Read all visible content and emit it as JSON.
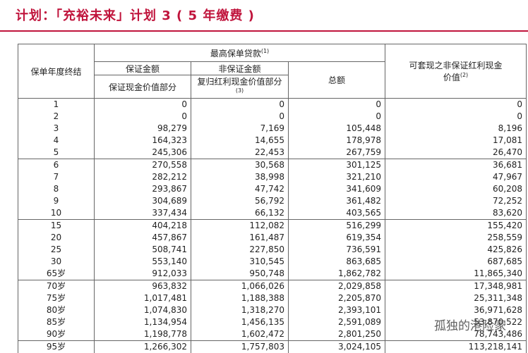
{
  "header": {
    "title": "计划：「充裕未来」计划 3 ( 5 年缴费 )"
  },
  "table": {
    "col_year": "保单年度终结",
    "loan": {
      "text": "最高保单贷款",
      "note": "(1)"
    },
    "guaranteed": "保证金额",
    "non_guaranteed": "非保证金额",
    "total": "总额",
    "guaranteed_sub": "保证现金价值部分",
    "non_guaranteed_sub": {
      "text": "复归红利现金价值部分",
      "note": "(3)"
    },
    "bonus": {
      "text": "可套现之非保证红利现金价值",
      "note": "(2)"
    },
    "rows": [
      [
        "1",
        "0",
        "0",
        "0",
        "0"
      ],
      [
        "2",
        "0",
        "0",
        "0",
        "0"
      ],
      [
        "3",
        "98,279",
        "7,169",
        "105,448",
        "8,196"
      ],
      [
        "4",
        "164,323",
        "14,655",
        "178,978",
        "17,081"
      ],
      [
        "5",
        "245,306",
        "22,453",
        "267,759",
        "26,470"
      ],
      [
        "6",
        "270,558",
        "30,568",
        "301,125",
        "36,681"
      ],
      [
        "7",
        "282,212",
        "38,998",
        "321,210",
        "47,967"
      ],
      [
        "8",
        "293,867",
        "47,742",
        "341,609",
        "60,208"
      ],
      [
        "9",
        "304,689",
        "56,792",
        "361,482",
        "72,252"
      ],
      [
        "10",
        "337,434",
        "66,132",
        "403,565",
        "83,620"
      ],
      [
        "15",
        "404,218",
        "112,082",
        "516,299",
        "155,420"
      ],
      [
        "20",
        "457,867",
        "161,487",
        "619,354",
        "258,559"
      ],
      [
        "25",
        "508,741",
        "227,850",
        "736,591",
        "425,826"
      ],
      [
        "30",
        "553,140",
        "310,545",
        "863,685",
        "687,685"
      ],
      [
        "65岁",
        "912,033",
        "950,748",
        "1,862,782",
        "11,865,340"
      ],
      [
        "70岁",
        "963,832",
        "1,066,026",
        "2,029,858",
        "17,348,981"
      ],
      [
        "75岁",
        "1,017,481",
        "1,188,388",
        "2,205,870",
        "25,311,348"
      ],
      [
        "80岁",
        "1,074,830",
        "1,318,270",
        "2,393,101",
        "36,971,628"
      ],
      [
        "85岁",
        "1,134,954",
        "1,456,135",
        "2,591,089",
        "53,870,522"
      ],
      [
        "90岁",
        "1,198,778",
        "1,602,472",
        "2,801,250",
        "78,743,486"
      ],
      [
        "95岁",
        "1,266,302",
        "1,757,803",
        "3,024,105",
        "113,218,141"
      ]
    ]
  },
  "watermark": "孤独的港险家"
}
